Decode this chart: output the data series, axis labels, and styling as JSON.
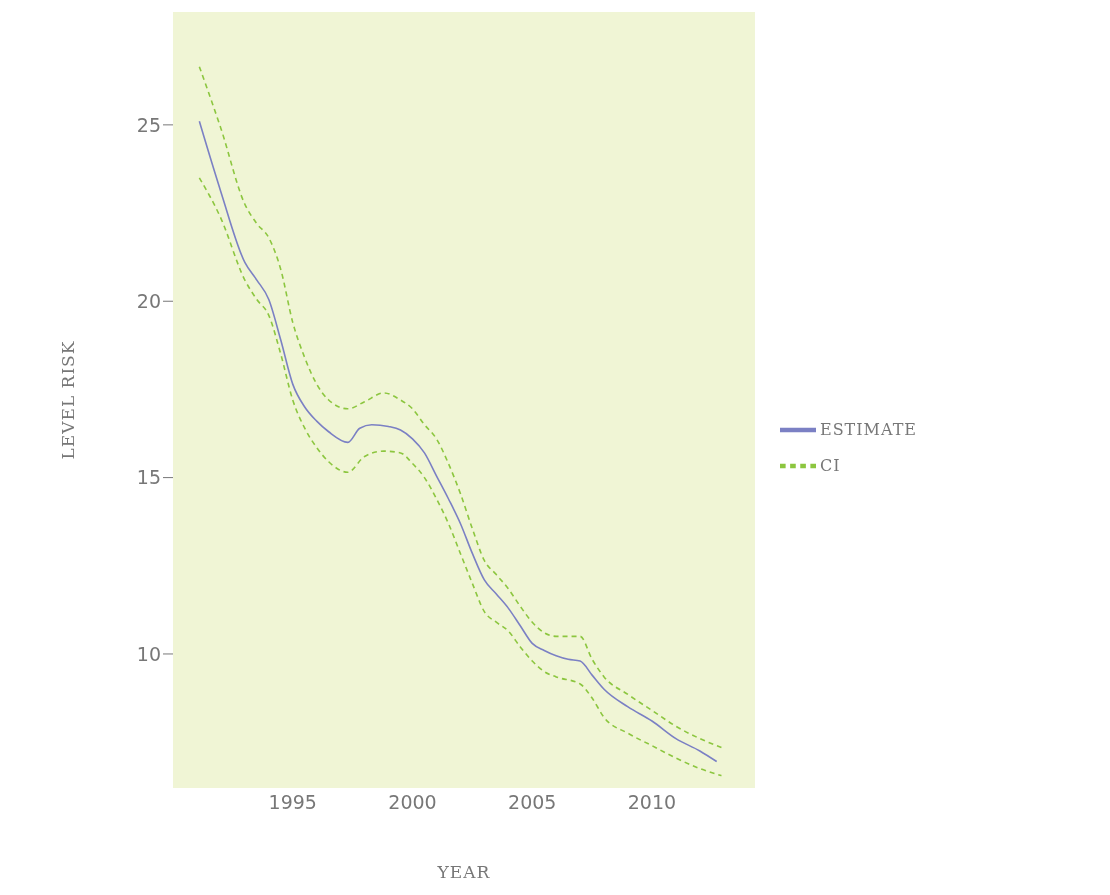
{
  "chart_data": {
    "type": "line",
    "xlabel": "YEAR",
    "ylabel": "LEVEL RISK",
    "xlim": [
      1990,
      2014.3
    ],
    "ylim": [
      6.2,
      28.2
    ],
    "xticks": [
      1995,
      2000,
      2005,
      2010
    ],
    "yticks": [
      10,
      15,
      20,
      25
    ],
    "grid": false,
    "legend": "right",
    "series": [
      {
        "name": "ESTIMATE",
        "color": "#7b80c4",
        "line_style": "solid",
        "x": [
          1991.1,
          1992,
          1993,
          1993.5,
          1994,
          1994.5,
          1995,
          1995.5,
          1996,
          1996.5,
          1997.3,
          1997.8,
          1998.3,
          1999,
          1999.5,
          2000,
          2000.5,
          2001,
          2001.5,
          2002,
          2002.5,
          2003,
          2003.5,
          2004,
          2004.5,
          2005,
          2005.5,
          2006,
          2006.5,
          2007,
          2007.5,
          2008,
          2009,
          2010,
          2011,
          2012,
          2012.7
        ],
        "values": [
          25.1,
          23.1,
          21.1,
          20.6,
          20.05,
          18.9,
          17.65,
          17.0,
          16.6,
          16.3,
          16.0,
          16.4,
          16.5,
          16.45,
          16.35,
          16.1,
          15.7,
          15.05,
          14.4,
          13.7,
          12.85,
          12.1,
          11.7,
          11.3,
          10.8,
          10.3,
          10.1,
          9.95,
          9.85,
          9.8,
          9.4,
          9.0,
          8.5,
          8.1,
          7.6,
          7.25,
          6.95
        ]
      },
      {
        "name": "CI",
        "color": "#8cc63f",
        "line_style": "dashed",
        "x": [
          1991.1,
          1992,
          1993,
          1993.5,
          1994,
          1994.5,
          1995,
          1995.5,
          1996,
          1996.5,
          1997.3,
          1998,
          1998.8,
          1999.5,
          2000,
          2000.5,
          2001,
          2001.5,
          2002,
          2002.5,
          2003,
          2003.5,
          2004,
          2004.5,
          2005,
          2005.5,
          2006,
          2007,
          2007.5,
          2008,
          2009,
          2010,
          2011,
          2012,
          2012.9
        ],
        "values": [
          26.65,
          24.9,
          22.75,
          22.2,
          21.8,
          20.9,
          19.4,
          18.4,
          17.65,
          17.2,
          16.95,
          17.15,
          17.4,
          17.2,
          16.95,
          16.5,
          16.1,
          15.4,
          14.55,
          13.55,
          12.65,
          12.25,
          11.85,
          11.35,
          10.9,
          10.6,
          10.5,
          10.5,
          9.85,
          9.35,
          8.85,
          8.4,
          7.95,
          7.6,
          7.35
        ]
      },
      {
        "color": "#8cc63f",
        "line_style": "dashed",
        "x": [
          1991.1,
          1992,
          1993,
          1993.5,
          1994,
          1994.5,
          1995,
          1995.5,
          1996,
          1996.5,
          1997.3,
          1998,
          1998.8,
          1999.5,
          2000,
          2000.5,
          2001,
          2001.5,
          2002,
          2002.5,
          2003,
          2003.5,
          2004,
          2004.5,
          2005,
          2005.5,
          2006,
          2007,
          2007.5,
          2008,
          2009,
          2010,
          2011,
          2012,
          2012.9
        ],
        "values": [
          23.5,
          22.35,
          20.6,
          20.05,
          19.6,
          18.5,
          17.2,
          16.4,
          15.85,
          15.45,
          15.15,
          15.6,
          15.75,
          15.7,
          15.4,
          15.0,
          14.4,
          13.7,
          12.85,
          12.0,
          11.2,
          10.9,
          10.65,
          10.2,
          9.8,
          9.5,
          9.35,
          9.15,
          8.75,
          8.2,
          7.75,
          7.4,
          7.05,
          6.75,
          6.55
        ]
      }
    ]
  }
}
